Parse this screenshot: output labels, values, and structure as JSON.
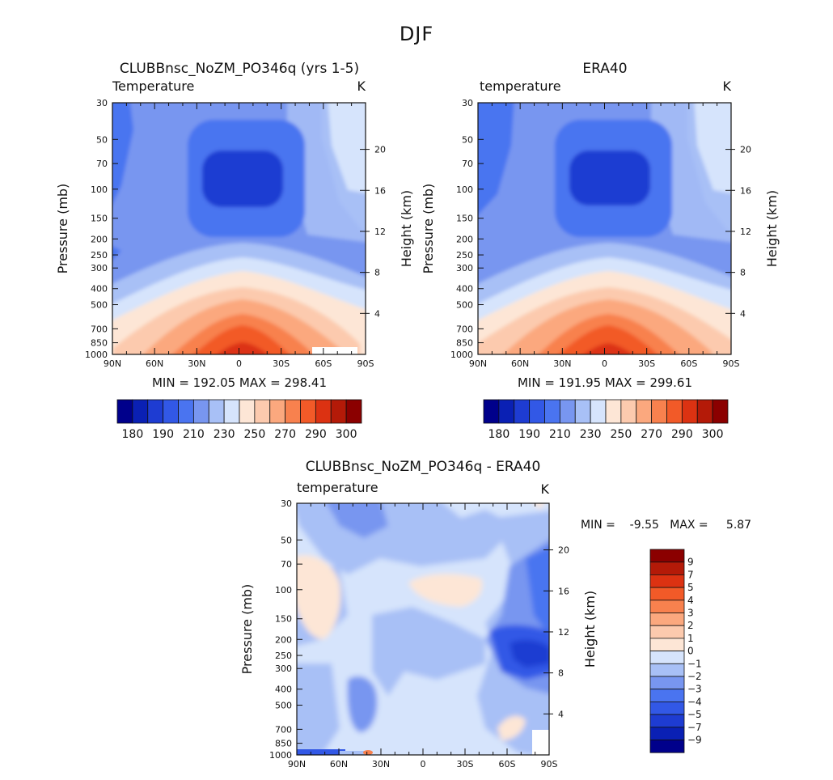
{
  "figure": {
    "title": "DJF"
  },
  "colors": {
    "temp_palette": [
      "#00008b",
      "#0a20b4",
      "#1e3cd2",
      "#3258e6",
      "#4a74f0",
      "#7896f0",
      "#a8c0f6",
      "#d6e4fc",
      "#fde6d6",
      "#fccaae",
      "#fba87e",
      "#f8814e",
      "#f25a28",
      "#dc3212",
      "#b41a08",
      "#8b0000"
    ],
    "diff_palette": [
      "#00008b",
      "#0a20b4",
      "#1e3cd2",
      "#3258e6",
      "#4a74f0",
      "#7896f0",
      "#a8c0f6",
      "#d6e4fc",
      "#fde6d6",
      "#fccaae",
      "#fba87e",
      "#f8814e",
      "#f25a28",
      "#dc3212",
      "#b41a08",
      "#8b0000"
    ]
  },
  "panels": {
    "model": {
      "title": "CLUBBnsc_NoZM_PO346q (yrs 1-5)",
      "left_label": "Temperature",
      "unit_label": "K",
      "stats": "MIN = 192.05   MAX = 298.41"
    },
    "obs": {
      "title": "ERA40",
      "left_label": "temperature",
      "unit_label": "K",
      "stats": "MIN = 191.95   MAX = 299.61"
    },
    "diff": {
      "title": "CLUBBnsc_NoZM_PO346q - ERA40",
      "left_label": "temperature",
      "unit_label": "K",
      "stats": "MIN =    -9.55   MAX =     5.87"
    }
  },
  "axes": {
    "ylabel_left": "Pressure (mb)",
    "ylabel_right": "Height (km)",
    "pressure_ticks": [
      "30",
      "50",
      "70",
      "100",
      "150",
      "200",
      "250",
      "300",
      "400",
      "500",
      "700",
      "850",
      "1000"
    ],
    "pressure_values": [
      30,
      50,
      70,
      100,
      150,
      200,
      250,
      300,
      400,
      500,
      700,
      850,
      1000
    ],
    "height_ticks": [
      "4",
      "8",
      "12",
      "16",
      "20"
    ],
    "height_values": [
      4,
      8,
      12,
      16,
      20
    ],
    "lat_ticks": [
      "90N",
      "60N",
      "30N",
      "0",
      "30S",
      "60S",
      "90S"
    ],
    "lat_values": [
      90,
      60,
      30,
      0,
      -30,
      -60,
      -90
    ]
  },
  "colorbars": {
    "temp_labels": [
      "180",
      "190",
      "210",
      "230",
      "250",
      "270",
      "290",
      "300"
    ],
    "diff_labels": [
      "9",
      "7",
      "5",
      "4",
      "3",
      "2",
      "1",
      "0",
      "−1",
      "−2",
      "−3",
      "−4",
      "−5",
      "−7",
      "−9"
    ]
  },
  "chart_data": [
    {
      "type": "heatmap",
      "title": "CLUBBnsc_NoZM_PO346q (yrs 1-5)",
      "variable": "Temperature",
      "units": "K",
      "xlabel": "",
      "ylabel": "Pressure (mb)",
      "y2label": "Height (km)",
      "x_range": [
        90,
        -90
      ],
      "y_range": [
        30,
        1000
      ],
      "y_scale": "log",
      "min": 192.05,
      "max": 298.41,
      "contour_levels": [
        180,
        190,
        200,
        205,
        210,
        215,
        220,
        225,
        230,
        240,
        250,
        260,
        270,
        280,
        290,
        300
      ],
      "features": [
        "cold tropical tropopause minimum near 100 mb (~192 K)",
        "warm tropical surface maximum (~298 K)"
      ]
    },
    {
      "type": "heatmap",
      "title": "ERA40",
      "variable": "temperature",
      "units": "K",
      "xlabel": "",
      "ylabel": "Pressure (mb)",
      "y2label": "Height (km)",
      "x_range": [
        90,
        -90
      ],
      "y_range": [
        30,
        1000
      ],
      "y_scale": "log",
      "min": 191.95,
      "max": 299.61,
      "contour_levels": [
        180,
        190,
        200,
        205,
        210,
        215,
        220,
        225,
        230,
        240,
        250,
        260,
        270,
        280,
        290,
        300
      ]
    },
    {
      "type": "heatmap",
      "title": "CLUBBnsc_NoZM_PO346q - ERA40",
      "variable": "temperature",
      "units": "K",
      "xlabel": "",
      "ylabel": "Pressure (mb)",
      "y2label": "Height (km)",
      "x_range": [
        90,
        -90
      ],
      "y_range": [
        30,
        1000
      ],
      "y_scale": "log",
      "min": -9.55,
      "max": 5.87,
      "contour_levels": [
        -9,
        -7,
        -5,
        -4,
        -3,
        -2,
        -1,
        0,
        1,
        2,
        3,
        4,
        5,
        7,
        9
      ]
    }
  ]
}
